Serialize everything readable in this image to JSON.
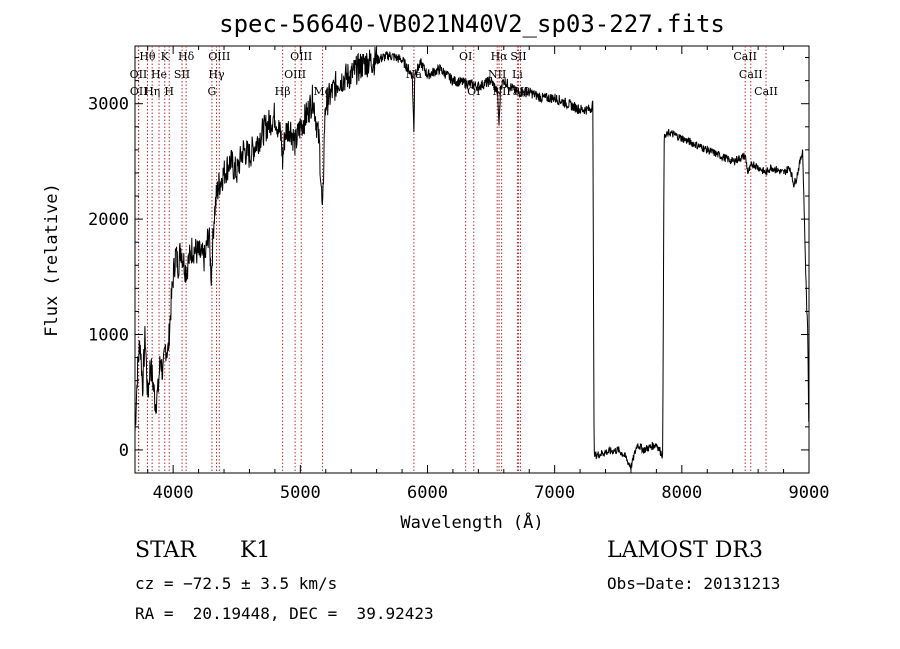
{
  "chart_data": {
    "type": "line",
    "title": "spec-56640-VB021N40V2_sp03-227.fits",
    "xlabel": "Wavelength (Å)",
    "ylabel": "Flux (relative)",
    "xlim": [
      3700,
      9000
    ],
    "ylim": [
      -200,
      3500
    ],
    "xticks": [
      4000,
      5000,
      6000,
      7000,
      8000,
      9000
    ],
    "yticks": [
      0,
      1000,
      2000,
      3000
    ],
    "series": [
      {
        "name": "flux",
        "x": [
          3700,
          3720,
          3740,
          3760,
          3780,
          3800,
          3820,
          3840,
          3860,
          3880,
          3900,
          3920,
          3940,
          3960,
          3980,
          4000,
          4020,
          4040,
          4060,
          4080,
          4100,
          4150,
          4200,
          4250,
          4280,
          4300,
          4320,
          4340,
          4360,
          4400,
          4450,
          4500,
          4550,
          4600,
          4700,
          4800,
          4850,
          4861,
          4880,
          4920,
          4960,
          5000,
          5050,
          5100,
          5150,
          5175,
          5190,
          5200,
          5250,
          5300,
          5400,
          5500,
          5600,
          5700,
          5800,
          5850,
          5880,
          5893,
          5900,
          5920,
          5950,
          6000,
          6100,
          6200,
          6300,
          6400,
          6500,
          6550,
          6563,
          6575,
          6600,
          6650,
          6700,
          6800,
          6900,
          7000,
          7100,
          7200,
          7280,
          7300,
          7310,
          7400,
          7500,
          7550,
          7600,
          7650,
          7700,
          7800,
          7850,
          7860,
          7900,
          8000,
          8100,
          8200,
          8300,
          8400,
          8498,
          8520,
          8542,
          8560,
          8600,
          8662,
          8700,
          8800,
          8850,
          8880,
          8900,
          8950,
          8980,
          8990,
          9000
        ],
        "y": [
          150,
          700,
          950,
          550,
          1000,
          450,
          750,
          600,
          400,
          500,
          800,
          650,
          900,
          850,
          1200,
          1500,
          1700,
          1600,
          1750,
          1650,
          1550,
          1750,
          1700,
          1650,
          1900,
          1500,
          2000,
          2200,
          2300,
          2400,
          2500,
          2400,
          2600,
          2550,
          2750,
          2900,
          2700,
          2500,
          2750,
          2800,
          2650,
          2800,
          2900,
          3050,
          2650,
          2000,
          2800,
          3000,
          3100,
          3200,
          3250,
          3350,
          3380,
          3420,
          3380,
          3300,
          3250,
          2750,
          3280,
          3300,
          3350,
          3250,
          3300,
          3200,
          3180,
          3150,
          3200,
          3100,
          2800,
          3150,
          3200,
          3150,
          3100,
          3100,
          3050,
          3050,
          3000,
          2950,
          2950,
          3000,
          -50,
          -20,
          0,
          -50,
          -150,
          50,
          0,
          50,
          -50,
          2700,
          2750,
          2700,
          2650,
          2600,
          2550,
          2500,
          2550,
          2400,
          2450,
          2480,
          2450,
          2400,
          2450,
          2400,
          2450,
          2300,
          2350,
          2600,
          1300,
          1050,
          0
        ]
      }
    ],
    "lines": [
      {
        "name": "Hθ",
        "wave": 3798,
        "row": 0
      },
      {
        "name": "OII",
        "wave": 3727,
        "row": 1
      },
      {
        "name": "OII",
        "wave": 3729,
        "row": 2
      },
      {
        "name": "He",
        "wave": 3889,
        "row": 1
      },
      {
        "name": "Hη",
        "wave": 3835,
        "row": 2
      },
      {
        "name": "K",
        "wave": 3934,
        "row": 0
      },
      {
        "name": "H",
        "wave": 3969,
        "row": 2
      },
      {
        "name": "SII",
        "wave": 4070,
        "row": 1
      },
      {
        "name": "Hδ",
        "wave": 4102,
        "row": 0
      },
      {
        "name": "OIII",
        "wave": 4363,
        "row": 0
      },
      {
        "name": "Hγ",
        "wave": 4341,
        "row": 1
      },
      {
        "name": "G",
        "wave": 4305,
        "row": 2
      },
      {
        "name": "OIII",
        "wave": 5007,
        "row": 0
      },
      {
        "name": "OIII",
        "wave": 4959,
        "row": 1
      },
      {
        "name": "Hβ",
        "wave": 4861,
        "row": 2
      },
      {
        "name": "Mg",
        "wave": 5175,
        "row": 2
      },
      {
        "name": "Na",
        "wave": 5893,
        "row": 1
      },
      {
        "name": "OI",
        "wave": 6300,
        "row": 0
      },
      {
        "name": "OI",
        "wave": 6364,
        "row": 2
      },
      {
        "name": "Hα",
        "wave": 6563,
        "row": 0
      },
      {
        "name": "NII",
        "wave": 6548,
        "row": 1
      },
      {
        "name": "NII",
        "wave": 6583,
        "row": 2
      },
      {
        "name": "SII",
        "wave": 6716,
        "row": 0
      },
      {
        "name": "Li",
        "wave": 6707,
        "row": 1
      },
      {
        "name": "SII",
        "wave": 6731,
        "row": 2
      },
      {
        "name": "CaII",
        "wave": 8498,
        "row": 0
      },
      {
        "name": "CaII",
        "wave": 8542,
        "row": 1
      },
      {
        "name": "CaII",
        "wave": 8662,
        "row": 2
      }
    ]
  },
  "info": {
    "class": "STAR",
    "subclass": "K1",
    "survey": "LAMOST DR3",
    "cz": "cz = −72.5 ± 3.5 km/s",
    "obs_date": "Obs−Date: 20131213",
    "radec": "RA =  20.19448, DEC =  39.92423"
  }
}
